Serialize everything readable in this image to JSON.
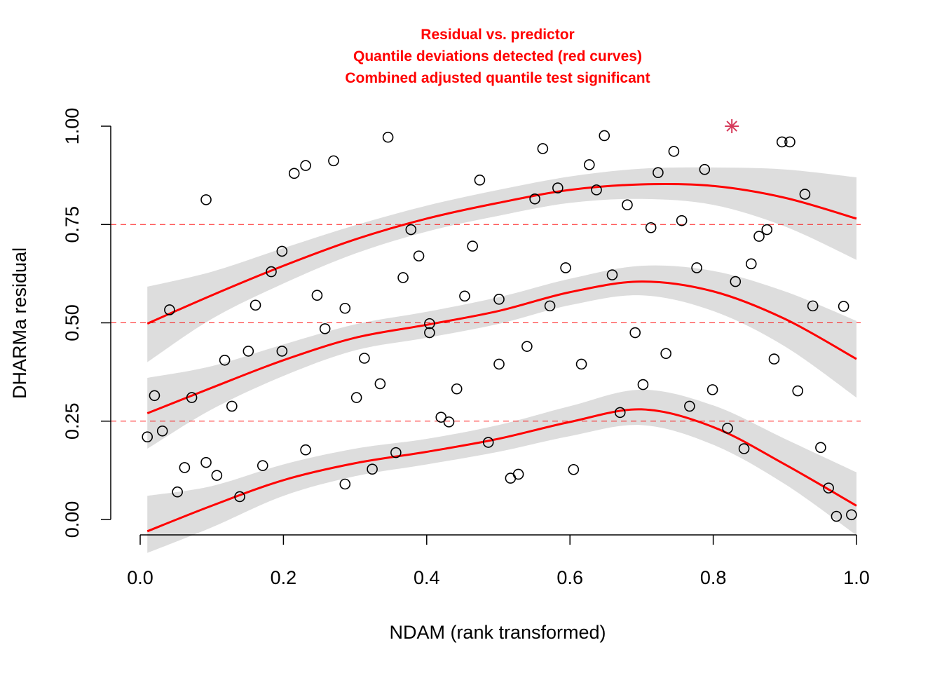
{
  "chart_data": {
    "type": "scatter",
    "title_lines": [
      "Residual vs. predictor",
      "Quantile deviations detected (red curves)",
      "Combined adjusted quantile test significant"
    ],
    "xlabel": "NDAM (rank transformed)",
    "ylabel": "DHARMa residual",
    "xlim": [
      0.0,
      1.0
    ],
    "ylim": [
      0.0,
      1.0
    ],
    "x_ticks": [
      0.0,
      0.2,
      0.4,
      0.6,
      0.8,
      1.0
    ],
    "x_tick_labels": [
      "0.0",
      "0.2",
      "0.4",
      "0.6",
      "0.8",
      "1.0"
    ],
    "y_ticks": [
      0.0,
      0.25,
      0.5,
      0.75,
      1.0
    ],
    "y_tick_labels": [
      "0.00",
      "0.25",
      "0.50",
      "0.75",
      "1.00"
    ],
    "reference_lines": [
      0.25,
      0.5,
      0.75
    ],
    "colors": {
      "title": "#ff0000",
      "curve": "#ff0000",
      "band": "#dddddd",
      "outlier": "#d63a5a",
      "points": "#000000"
    },
    "points": [
      {
        "x": 0.01,
        "y": 0.21
      },
      {
        "x": 0.02,
        "y": 0.315
      },
      {
        "x": 0.031,
        "y": 0.225
      },
      {
        "x": 0.041,
        "y": 0.533
      },
      {
        "x": 0.052,
        "y": 0.07
      },
      {
        "x": 0.062,
        "y": 0.132
      },
      {
        "x": 0.072,
        "y": 0.31
      },
      {
        "x": 0.092,
        "y": 0.813
      },
      {
        "x": 0.092,
        "y": 0.145
      },
      {
        "x": 0.107,
        "y": 0.112
      },
      {
        "x": 0.118,
        "y": 0.405
      },
      {
        "x": 0.128,
        "y": 0.288
      },
      {
        "x": 0.139,
        "y": 0.058
      },
      {
        "x": 0.151,
        "y": 0.428
      },
      {
        "x": 0.161,
        "y": 0.545
      },
      {
        "x": 0.171,
        "y": 0.137
      },
      {
        "x": 0.183,
        "y": 0.63
      },
      {
        "x": 0.198,
        "y": 0.682
      },
      {
        "x": 0.198,
        "y": 0.428
      },
      {
        "x": 0.215,
        "y": 0.88
      },
      {
        "x": 0.231,
        "y": 0.9
      },
      {
        "x": 0.231,
        "y": 0.177
      },
      {
        "x": 0.247,
        "y": 0.57
      },
      {
        "x": 0.258,
        "y": 0.485
      },
      {
        "x": 0.27,
        "y": 0.912
      },
      {
        "x": 0.286,
        "y": 0.537
      },
      {
        "x": 0.286,
        "y": 0.09
      },
      {
        "x": 0.302,
        "y": 0.31
      },
      {
        "x": 0.313,
        "y": 0.41
      },
      {
        "x": 0.324,
        "y": 0.128
      },
      {
        "x": 0.335,
        "y": 0.345
      },
      {
        "x": 0.346,
        "y": 0.972
      },
      {
        "x": 0.357,
        "y": 0.17
      },
      {
        "x": 0.367,
        "y": 0.615
      },
      {
        "x": 0.378,
        "y": 0.737
      },
      {
        "x": 0.389,
        "y": 0.67
      },
      {
        "x": 0.404,
        "y": 0.498
      },
      {
        "x": 0.404,
        "y": 0.475
      },
      {
        "x": 0.42,
        "y": 0.26
      },
      {
        "x": 0.431,
        "y": 0.248
      },
      {
        "x": 0.442,
        "y": 0.332
      },
      {
        "x": 0.453,
        "y": 0.568
      },
      {
        "x": 0.464,
        "y": 0.695
      },
      {
        "x": 0.474,
        "y": 0.863
      },
      {
        "x": 0.486,
        "y": 0.196
      },
      {
        "x": 0.501,
        "y": 0.56
      },
      {
        "x": 0.501,
        "y": 0.395
      },
      {
        "x": 0.517,
        "y": 0.105
      },
      {
        "x": 0.528,
        "y": 0.115
      },
      {
        "x": 0.54,
        "y": 0.44
      },
      {
        "x": 0.551,
        "y": 0.815
      },
      {
        "x": 0.562,
        "y": 0.943
      },
      {
        "x": 0.572,
        "y": 0.543
      },
      {
        "x": 0.583,
        "y": 0.843
      },
      {
        "x": 0.594,
        "y": 0.64
      },
      {
        "x": 0.605,
        "y": 0.127
      },
      {
        "x": 0.616,
        "y": 0.395
      },
      {
        "x": 0.627,
        "y": 0.902
      },
      {
        "x": 0.637,
        "y": 0.838
      },
      {
        "x": 0.648,
        "y": 0.976
      },
      {
        "x": 0.659,
        "y": 0.622
      },
      {
        "x": 0.67,
        "y": 0.272
      },
      {
        "x": 0.68,
        "y": 0.8
      },
      {
        "x": 0.691,
        "y": 0.475
      },
      {
        "x": 0.702,
        "y": 0.343
      },
      {
        "x": 0.713,
        "y": 0.742
      },
      {
        "x": 0.723,
        "y": 0.882
      },
      {
        "x": 0.734,
        "y": 0.422
      },
      {
        "x": 0.745,
        "y": 0.936
      },
      {
        "x": 0.756,
        "y": 0.76
      },
      {
        "x": 0.767,
        "y": 0.288
      },
      {
        "x": 0.777,
        "y": 0.64
      },
      {
        "x": 0.788,
        "y": 0.89
      },
      {
        "x": 0.799,
        "y": 0.33
      },
      {
        "x": 0.82,
        "y": 0.232
      },
      {
        "x": 0.831,
        "y": 0.605
      },
      {
        "x": 0.843,
        "y": 0.18
      },
      {
        "x": 0.853,
        "y": 0.65
      },
      {
        "x": 0.864,
        "y": 0.72
      },
      {
        "x": 0.875,
        "y": 0.737
      },
      {
        "x": 0.885,
        "y": 0.408
      },
      {
        "x": 0.896,
        "y": 0.96
      },
      {
        "x": 0.907,
        "y": 0.96
      },
      {
        "x": 0.918,
        "y": 0.327
      },
      {
        "x": 0.928,
        "y": 0.827
      },
      {
        "x": 0.939,
        "y": 0.543
      },
      {
        "x": 0.95,
        "y": 0.183
      },
      {
        "x": 0.961,
        "y": 0.08
      },
      {
        "x": 0.972,
        "y": 0.008
      },
      {
        "x": 0.982,
        "y": 0.542
      },
      {
        "x": 0.993,
        "y": 0.012
      }
    ],
    "outliers": [
      {
        "x": 0.826,
        "y": 1.0
      }
    ],
    "quantile_curves": [
      {
        "quantile": 0.25,
        "x": [
          0.01,
          0.1,
          0.2,
          0.3,
          0.4,
          0.5,
          0.6,
          0.7,
          0.8,
          0.9,
          1.0
        ],
        "y": [
          -0.03,
          0.035,
          0.1,
          0.143,
          0.172,
          0.205,
          0.248,
          0.28,
          0.235,
          0.14,
          0.035
        ],
        "lower": [
          -0.085,
          -0.02,
          0.06,
          0.11,
          0.14,
          0.172,
          0.212,
          0.24,
          0.19,
          0.09,
          -0.04
        ],
        "upper": [
          0.06,
          0.085,
          0.14,
          0.18,
          0.205,
          0.24,
          0.288,
          0.33,
          0.29,
          0.205,
          0.12
        ]
      },
      {
        "quantile": 0.5,
        "x": [
          0.01,
          0.1,
          0.2,
          0.3,
          0.4,
          0.5,
          0.6,
          0.7,
          0.8,
          0.9,
          1.0
        ],
        "y": [
          0.27,
          0.335,
          0.405,
          0.462,
          0.495,
          0.53,
          0.578,
          0.605,
          0.58,
          0.51,
          0.408
        ],
        "lower": [
          0.18,
          0.28,
          0.365,
          0.43,
          0.462,
          0.497,
          0.545,
          0.57,
          0.53,
          0.44,
          0.31
        ],
        "upper": [
          0.36,
          0.39,
          0.445,
          0.496,
          0.528,
          0.565,
          0.612,
          0.645,
          0.632,
          0.58,
          0.505
        ]
      },
      {
        "quantile": 0.75,
        "x": [
          0.01,
          0.1,
          0.2,
          0.3,
          0.4,
          0.5,
          0.6,
          0.7,
          0.8,
          0.9,
          1.0
        ],
        "y": [
          0.498,
          0.57,
          0.645,
          0.712,
          0.765,
          0.805,
          0.838,
          0.852,
          0.848,
          0.818,
          0.765
        ],
        "lower": [
          0.4,
          0.51,
          0.6,
          0.676,
          0.732,
          0.772,
          0.805,
          0.815,
          0.8,
          0.745,
          0.66
        ],
        "upper": [
          0.592,
          0.63,
          0.69,
          0.748,
          0.798,
          0.838,
          0.872,
          0.892,
          0.895,
          0.89,
          0.87
        ]
      }
    ]
  }
}
